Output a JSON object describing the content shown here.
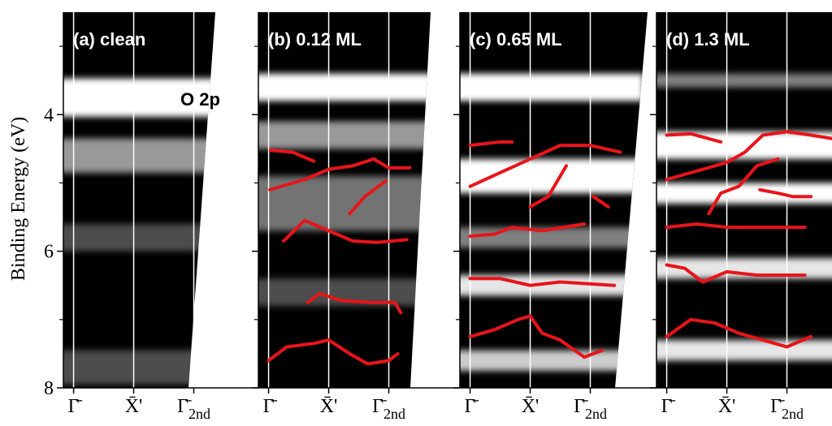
{
  "chart_data": [
    {
      "type": "line",
      "title": "(a) clean",
      "ylabel": "Binding Energy (eV)",
      "annotation": "O 2p",
      "ylim": [
        8,
        2.5
      ],
      "yticks": [
        4,
        6,
        8
      ],
      "yticks_minor": [
        3,
        5,
        7
      ],
      "xlim": [
        -0.17,
        2.75
      ],
      "xticks": [
        {
          "value": 0,
          "label": "Γ̄"
        },
        {
          "value": 1,
          "label": "X̄'"
        },
        {
          "value": 2,
          "label": "Γ̄",
          "sub": "2nd"
        }
      ],
      "series": []
    },
    {
      "type": "line",
      "title": "(b) 0.12 ML",
      "ylim": [
        8,
        2.5
      ],
      "yticks": [
        4,
        6,
        8
      ],
      "yticks_minor": [
        3,
        5,
        7
      ],
      "xlim": [
        -0.17,
        2.75
      ],
      "xticks": [
        {
          "value": 0,
          "label": "Γ̄"
        },
        {
          "value": 1,
          "label": "X̄'"
        },
        {
          "value": 2,
          "label": "Γ̄",
          "sub": "2nd"
        }
      ],
      "series": [
        {
          "color": "#e8141a",
          "x": [
            0.03,
            0.4,
            0.75
          ],
          "values": [
            4.52,
            4.55,
            4.68
          ]
        },
        {
          "color": "#e8141a",
          "x": [
            0.02,
            0.6,
            1.0,
            1.4,
            1.75,
            2.0,
            2.35
          ],
          "values": [
            5.1,
            4.95,
            4.8,
            4.75,
            4.65,
            4.78,
            4.78
          ]
        },
        {
          "color": "#e8141a",
          "x": [
            1.35,
            1.6,
            1.95
          ],
          "values": [
            5.45,
            5.2,
            4.97
          ]
        },
        {
          "color": "#e8141a",
          "x": [
            0.25,
            0.6,
            1.0,
            1.4,
            1.8,
            2.3
          ],
          "values": [
            5.85,
            5.55,
            5.7,
            5.85,
            5.87,
            5.83
          ]
        },
        {
          "color": "#e8141a",
          "x": [
            0.65,
            0.85,
            1.2,
            1.7,
            2.1,
            2.2
          ],
          "values": [
            6.75,
            6.62,
            6.72,
            6.75,
            6.75,
            6.9
          ]
        },
        {
          "color": "#e8141a",
          "x": [
            0.0,
            0.3,
            0.75,
            1.0,
            1.35,
            1.65,
            2.0,
            2.15
          ],
          "values": [
            7.6,
            7.4,
            7.35,
            7.3,
            7.5,
            7.65,
            7.6,
            7.5
          ]
        }
      ]
    },
    {
      "type": "line",
      "title": "(c) 0.65 ML",
      "ylim": [
        8,
        2.5
      ],
      "yticks": [
        4,
        6,
        8
      ],
      "yticks_minor": [
        3,
        5,
        7
      ],
      "xlim": [
        -0.17,
        2.75
      ],
      "xticks": [
        {
          "value": 0,
          "label": "Γ̄"
        },
        {
          "value": 1,
          "label": "X̄'"
        },
        {
          "value": 2,
          "label": "Γ̄",
          "sub": "2nd"
        }
      ],
      "series": [
        {
          "color": "#e8141a",
          "x": [
            0.0,
            0.5,
            0.7
          ],
          "values": [
            4.45,
            4.4,
            4.4
          ]
        },
        {
          "color": "#e8141a",
          "x": [
            0.0,
            0.5,
            1.0,
            1.5,
            2.0,
            2.5
          ],
          "values": [
            5.05,
            4.85,
            4.65,
            4.45,
            4.45,
            4.55
          ]
        },
        {
          "color": "#e8141a",
          "x": [
            1.0,
            1.3,
            1.6
          ],
          "values": [
            5.35,
            5.2,
            4.75
          ]
        },
        {
          "color": "#e8141a",
          "x": [
            2.05,
            2.3
          ],
          "values": [
            5.2,
            5.35
          ]
        },
        {
          "color": "#e8141a",
          "x": [
            0.0,
            0.4,
            0.7,
            1.2,
            1.9
          ],
          "values": [
            5.78,
            5.75,
            5.65,
            5.7,
            5.6
          ]
        },
        {
          "color": "#e8141a",
          "x": [
            0.0,
            0.5,
            1.0,
            1.5,
            2.4
          ],
          "values": [
            6.4,
            6.4,
            6.5,
            6.45,
            6.5
          ]
        },
        {
          "color": "#e8141a",
          "x": [
            0.0,
            0.4,
            0.8,
            1.0,
            1.2,
            1.5,
            1.9,
            2.2
          ],
          "values": [
            7.25,
            7.15,
            7.0,
            6.95,
            7.2,
            7.3,
            7.55,
            7.45
          ]
        }
      ]
    },
    {
      "type": "line",
      "title": "(d) 1.3 ML",
      "ylim": [
        8,
        2.5
      ],
      "yticks": [
        4,
        6,
        8
      ],
      "yticks_minor": [
        3,
        5,
        7
      ],
      "xlim": [
        -0.17,
        2.75
      ],
      "xticks": [
        {
          "value": 0,
          "label": "Γ̄"
        },
        {
          "value": 1,
          "label": "X̄'"
        },
        {
          "value": 2,
          "label": "Γ̄",
          "sub": "2nd"
        }
      ],
      "series": [
        {
          "color": "#e8141a",
          "x": [
            0.0,
            0.4,
            0.9
          ],
          "values": [
            4.3,
            4.28,
            4.4
          ]
        },
        {
          "color": "#e8141a",
          "x": [
            0.0,
            0.6,
            1.0,
            1.3,
            1.6,
            2.0,
            2.4,
            2.75
          ],
          "values": [
            4.95,
            4.8,
            4.7,
            4.55,
            4.3,
            4.25,
            4.3,
            4.35
          ]
        },
        {
          "color": "#e8141a",
          "x": [
            0.7,
            0.9,
            1.2,
            1.5,
            1.85
          ],
          "values": [
            5.45,
            5.15,
            5.05,
            4.75,
            4.65
          ]
        },
        {
          "color": "#e8141a",
          "x": [
            1.55,
            1.85,
            2.1,
            2.4
          ],
          "values": [
            5.1,
            5.15,
            5.2,
            5.2
          ]
        },
        {
          "color": "#e8141a",
          "x": [
            0.0,
            0.5,
            1.0,
            1.5,
            2.3
          ],
          "values": [
            5.65,
            5.6,
            5.65,
            5.65,
            5.65
          ]
        },
        {
          "color": "#e8141a",
          "x": [
            0.0,
            0.3,
            0.6,
            1.0,
            1.5,
            2.3
          ],
          "values": [
            6.2,
            6.25,
            6.45,
            6.3,
            6.35,
            6.35
          ]
        },
        {
          "color": "#e8141a",
          "x": [
            0.0,
            0.4,
            0.8,
            1.2,
            1.6,
            2.0,
            2.4
          ],
          "values": [
            7.25,
            7.0,
            7.05,
            7.2,
            7.3,
            7.4,
            7.25
          ]
        }
      ]
    }
  ]
}
